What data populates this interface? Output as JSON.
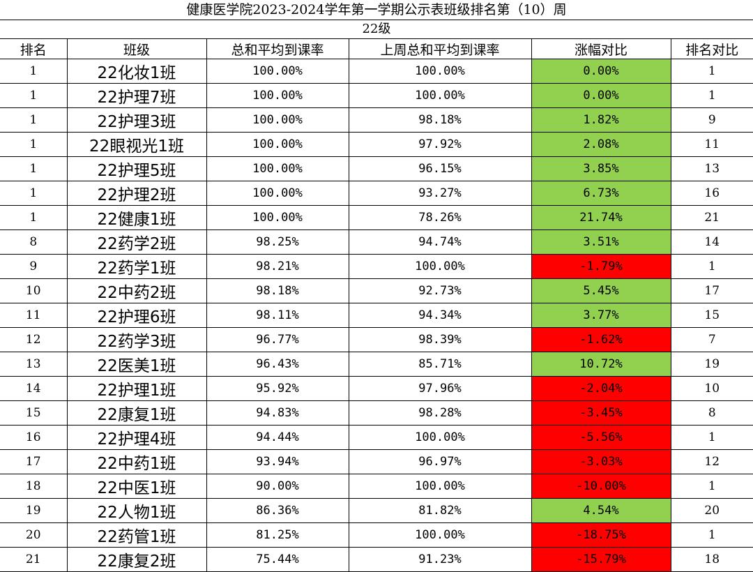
{
  "title": "健康医学院2023-2024学年第一学期公示表班级排名第（10）周",
  "subtitle": "22级",
  "colors": {
    "increase": "#92d050",
    "decrease": "#ff0000"
  },
  "headers": [
    "排名",
    "班级",
    "总和平均到课率",
    "上周总和平均到课率",
    "涨幅对比",
    "排名对比"
  ],
  "rows": [
    {
      "rank": "1",
      "cls": "22化妆1班",
      "avg": "100.00%",
      "last": "100.00%",
      "change": "0.00%",
      "trend": "up",
      "prev_rank": "1"
    },
    {
      "rank": "1",
      "cls": "22护理7班",
      "avg": "100.00%",
      "last": "100.00%",
      "change": "0.00%",
      "trend": "up",
      "prev_rank": "1"
    },
    {
      "rank": "1",
      "cls": "22护理3班",
      "avg": "100.00%",
      "last": "98.18%",
      "change": "1.82%",
      "trend": "up",
      "prev_rank": "9"
    },
    {
      "rank": "1",
      "cls": "22眼视光1班",
      "avg": "100.00%",
      "last": "97.92%",
      "change": "2.08%",
      "trend": "up",
      "prev_rank": "11"
    },
    {
      "rank": "1",
      "cls": "22护理5班",
      "avg": "100.00%",
      "last": "96.15%",
      "change": "3.85%",
      "trend": "up",
      "prev_rank": "13"
    },
    {
      "rank": "1",
      "cls": "22护理2班",
      "avg": "100.00%",
      "last": "93.27%",
      "change": "6.73%",
      "trend": "up",
      "prev_rank": "16"
    },
    {
      "rank": "1",
      "cls": "22健康1班",
      "avg": "100.00%",
      "last": "78.26%",
      "change": "21.74%",
      "trend": "up",
      "prev_rank": "21"
    },
    {
      "rank": "8",
      "cls": "22药学2班",
      "avg": "98.25%",
      "last": "94.74%",
      "change": "3.51%",
      "trend": "up",
      "prev_rank": "14"
    },
    {
      "rank": "9",
      "cls": "22药学1班",
      "avg": "98.21%",
      "last": "100.00%",
      "change": "-1.79%",
      "trend": "down",
      "prev_rank": "1"
    },
    {
      "rank": "10",
      "cls": "22中药2班",
      "avg": "98.18%",
      "last": "92.73%",
      "change": "5.45%",
      "trend": "up",
      "prev_rank": "17"
    },
    {
      "rank": "11",
      "cls": "22护理6班",
      "avg": "98.11%",
      "last": "94.34%",
      "change": "3.77%",
      "trend": "up",
      "prev_rank": "15"
    },
    {
      "rank": "12",
      "cls": "22药学3班",
      "avg": "96.77%",
      "last": "98.39%",
      "change": "-1.62%",
      "trend": "down",
      "prev_rank": "7"
    },
    {
      "rank": "13",
      "cls": "22医美1班",
      "avg": "96.43%",
      "last": "85.71%",
      "change": "10.72%",
      "trend": "up",
      "prev_rank": "19"
    },
    {
      "rank": "14",
      "cls": "22护理1班",
      "avg": "95.92%",
      "last": "97.96%",
      "change": "-2.04%",
      "trend": "down",
      "prev_rank": "10"
    },
    {
      "rank": "15",
      "cls": "22康复1班",
      "avg": "94.83%",
      "last": "98.28%",
      "change": "-3.45%",
      "trend": "down",
      "prev_rank": "8"
    },
    {
      "rank": "16",
      "cls": "22护理4班",
      "avg": "94.44%",
      "last": "100.00%",
      "change": "-5.56%",
      "trend": "down",
      "prev_rank": "1"
    },
    {
      "rank": "17",
      "cls": "22中药1班",
      "avg": "93.94%",
      "last": "96.97%",
      "change": "-3.03%",
      "trend": "down",
      "prev_rank": "12"
    },
    {
      "rank": "18",
      "cls": "22中医1班",
      "avg": "90.00%",
      "last": "100.00%",
      "change": "-10.00%",
      "trend": "down",
      "prev_rank": "1"
    },
    {
      "rank": "19",
      "cls": "22人物1班",
      "avg": "86.36%",
      "last": "81.82%",
      "change": "4.54%",
      "trend": "up",
      "prev_rank": "20"
    },
    {
      "rank": "20",
      "cls": "22药管1班",
      "avg": "81.25%",
      "last": "100.00%",
      "change": "-18.75%",
      "trend": "down",
      "prev_rank": "1"
    },
    {
      "rank": "21",
      "cls": "22康复2班",
      "avg": "75.44%",
      "last": "91.23%",
      "change": "-15.79%",
      "trend": "down",
      "prev_rank": "18"
    }
  ]
}
